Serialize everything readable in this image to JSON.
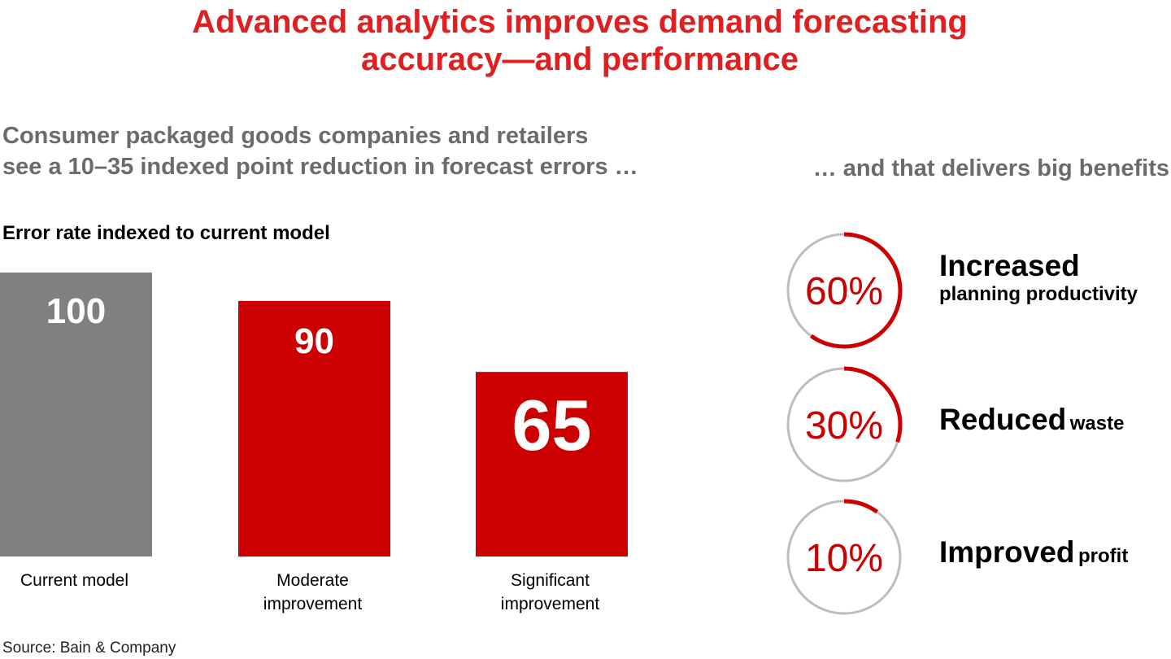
{
  "header": {
    "title_line1": "Advanced analytics improves demand forecasting",
    "title_line2": "accuracy—and performance"
  },
  "left_panel": {
    "subtitle_line1": "Consumer packaged goods companies and retailers",
    "subtitle_line2": "see a 10–35 indexed point reduction in forecast errors …",
    "axis_caption": "Error rate indexed to current model"
  },
  "right_panel": {
    "subtitle": "… and that delivers big benefits",
    "benefits": [
      {
        "value": 60,
        "label": "60%",
        "bold": "Increased",
        "rest": "planning productivity"
      },
      {
        "value": 30,
        "label": "30%",
        "bold": "Reduced",
        "rest": "waste"
      },
      {
        "value": 10,
        "label": "10%",
        "bold": "Improved",
        "rest": "profit"
      }
    ]
  },
  "chart_data": {
    "type": "bar",
    "categories": [
      [
        "Current model"
      ],
      [
        "Moderate",
        "improvement"
      ],
      [
        "Significant",
        "improvement"
      ]
    ],
    "values": [
      100,
      90,
      65
    ],
    "data_labels": [
      "100",
      "90",
      "65"
    ],
    "ylabel": "Error rate indexed to current model",
    "ylim": [
      0,
      100
    ],
    "grid": false
  },
  "colors": {
    "title": "#e02020",
    "subtitle": "#6b6b6b",
    "bar_current": "#808083",
    "bar_improved": "#cc0000",
    "ring_track": "#bdbdbd",
    "ring_fill": "#cc0000"
  },
  "footer": {
    "source": "Source: Bain & Company"
  }
}
